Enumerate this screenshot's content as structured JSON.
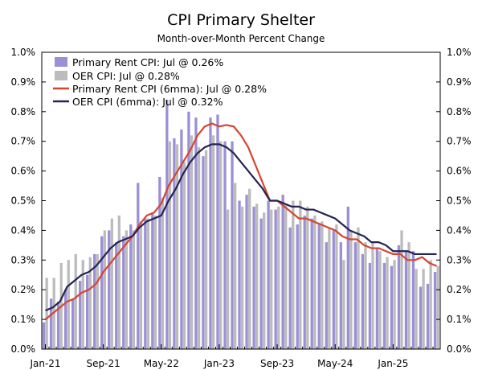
{
  "chart_data": {
    "type": "bar",
    "title": "CPI Primary Shelter",
    "subtitle": "Month-over-Month Percent Change",
    "ylim": [
      0,
      1.0
    ],
    "yticks": [
      "0.0%",
      "0.1%",
      "0.2%",
      "0.3%",
      "0.4%",
      "0.5%",
      "0.6%",
      "0.7%",
      "0.8%",
      "0.9%",
      "1.0%"
    ],
    "xticks": [
      "Jan-21",
      "Sep-21",
      "May-22",
      "Jan-23",
      "Sep-23",
      "May-24",
      "Jan-25"
    ],
    "xtick_index": [
      0,
      8,
      16,
      24,
      32,
      40,
      48
    ],
    "grid": false,
    "legend_position": "top-left",
    "categories": [
      "2021-01",
      "2021-02",
      "2021-03",
      "2021-04",
      "2021-05",
      "2021-06",
      "2021-07",
      "2021-08",
      "2021-09",
      "2021-10",
      "2021-11",
      "2021-12",
      "2022-01",
      "2022-02",
      "2022-03",
      "2022-04",
      "2022-05",
      "2022-06",
      "2022-07",
      "2022-08",
      "2022-09",
      "2022-10",
      "2022-11",
      "2022-12",
      "2023-01",
      "2023-02",
      "2023-03",
      "2023-04",
      "2023-05",
      "2023-06",
      "2023-07",
      "2023-08",
      "2023-09",
      "2023-10",
      "2023-11",
      "2023-12",
      "2024-01",
      "2024-02",
      "2024-03",
      "2024-04",
      "2024-05",
      "2024-06",
      "2024-07",
      "2024-08",
      "2024-09",
      "2024-10",
      "2024-11",
      "2024-12",
      "2025-01",
      "2025-02",
      "2025-03",
      "2025-04",
      "2025-05",
      "2025-06",
      "2025-07"
    ],
    "series": [
      {
        "name": "Primary Rent CPI: Jul @ 0.26%",
        "kind": "bar",
        "color": "#9c8fd6",
        "values": [
          0.09,
          0.17,
          0.16,
          0.2,
          0.17,
          0.23,
          0.25,
          0.32,
          0.38,
          0.4,
          0.36,
          0.38,
          0.42,
          0.56,
          0.44,
          0.46,
          0.58,
          0.84,
          0.71,
          0.74,
          0.8,
          0.78,
          0.65,
          0.78,
          0.79,
          0.7,
          0.7,
          0.5,
          0.52,
          0.48,
          0.44,
          0.5,
          0.47,
          0.52,
          0.41,
          0.42,
          0.45,
          0.44,
          0.42,
          0.36,
          0.4,
          0.36,
          0.48,
          0.36,
          0.32,
          0.29,
          0.34,
          0.29,
          0.28,
          0.35,
          0.33,
          0.33,
          0.21,
          0.22,
          0.26
        ]
      },
      {
        "name": "OER CPI: Jul @ 0.28%",
        "kind": "bar",
        "color": "#bcbcbc",
        "values": [
          0.24,
          0.24,
          0.29,
          0.3,
          0.32,
          0.3,
          0.31,
          0.32,
          0.4,
          0.44,
          0.45,
          0.4,
          0.4,
          0.43,
          0.44,
          0.45,
          0.51,
          0.7,
          0.69,
          0.63,
          0.72,
          0.68,
          0.67,
          0.72,
          0.7,
          0.47,
          0.56,
          0.48,
          0.54,
          0.49,
          0.46,
          0.47,
          0.48,
          0.49,
          0.5,
          0.5,
          0.48,
          0.45,
          0.43,
          0.41,
          0.42,
          0.3,
          0.4,
          0.41,
          0.36,
          0.36,
          0.33,
          0.31,
          0.3,
          0.4,
          0.36,
          0.27,
          0.27,
          0.3,
          0.28
        ]
      },
      {
        "name": "Primary Rent CPI (6mma): Jul @ 0.28%",
        "kind": "line",
        "color": "#d6452f",
        "values": [
          0.1,
          0.12,
          0.14,
          0.16,
          0.17,
          0.19,
          0.2,
          0.22,
          0.26,
          0.29,
          0.32,
          0.35,
          0.38,
          0.42,
          0.45,
          0.46,
          0.49,
          0.55,
          0.59,
          0.63,
          0.67,
          0.72,
          0.75,
          0.76,
          0.75,
          0.755,
          0.75,
          0.72,
          0.68,
          0.62,
          0.56,
          0.5,
          0.5,
          0.48,
          0.46,
          0.44,
          0.44,
          0.43,
          0.42,
          0.41,
          0.4,
          0.38,
          0.37,
          0.37,
          0.35,
          0.34,
          0.34,
          0.33,
          0.32,
          0.32,
          0.3,
          0.3,
          0.31,
          0.29,
          0.28
        ]
      },
      {
        "name": "OER CPI (6mma): Jul @ 0.32%",
        "kind": "line",
        "color": "#232355",
        "values": [
          0.13,
          0.14,
          0.16,
          0.21,
          0.23,
          0.25,
          0.26,
          0.28,
          0.31,
          0.34,
          0.36,
          0.37,
          0.38,
          0.41,
          0.43,
          0.44,
          0.45,
          0.5,
          0.54,
          0.59,
          0.63,
          0.66,
          0.68,
          0.69,
          0.69,
          0.68,
          0.66,
          0.63,
          0.6,
          0.57,
          0.54,
          0.5,
          0.5,
          0.49,
          0.48,
          0.48,
          0.47,
          0.47,
          0.46,
          0.45,
          0.44,
          0.42,
          0.4,
          0.39,
          0.38,
          0.36,
          0.36,
          0.35,
          0.33,
          0.33,
          0.33,
          0.32,
          0.32,
          0.32,
          0.32
        ]
      }
    ]
  }
}
